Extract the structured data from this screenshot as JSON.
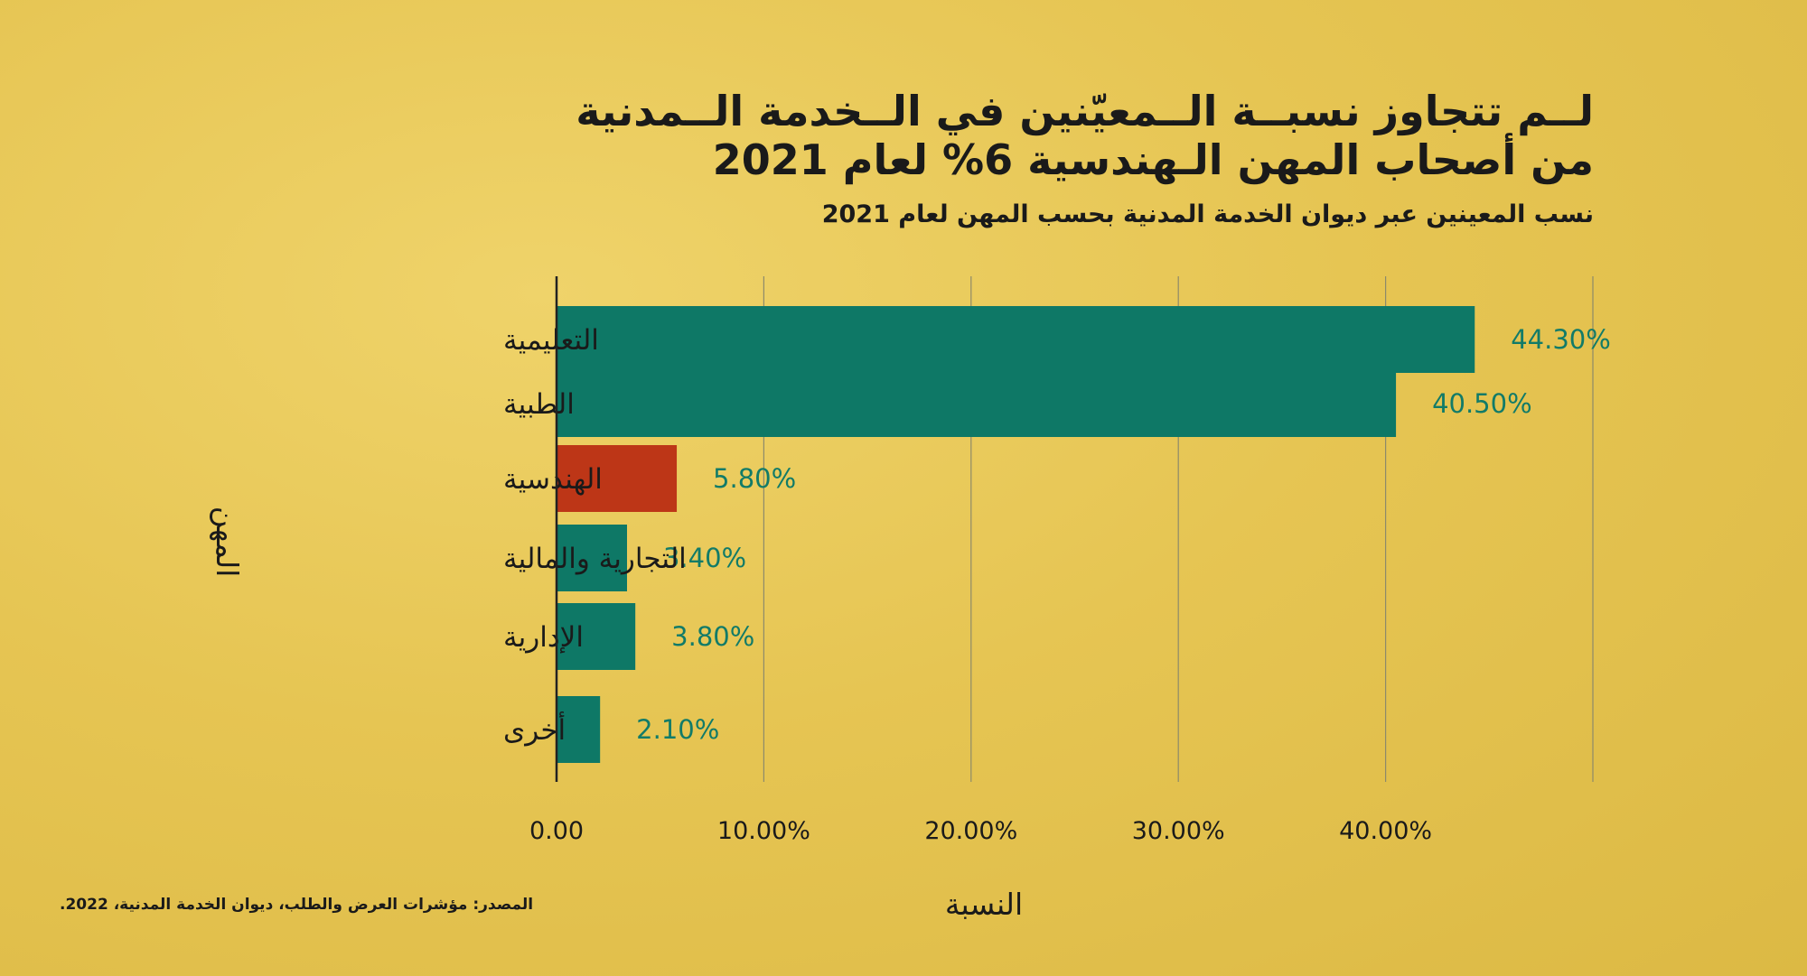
{
  "title_lines": [
    "لــم تتجاوز نسبــة الــمعيّنين في الــخدمة الــمدنية",
    "من أصحاب المهن الـهندسية 6% لعام 2021"
  ],
  "subtitle": "نسب المعينين عبر ديوان الخدمة المدنية بحسب المهن لعام 2021",
  "source": "المصدر: مؤشرات العرض والطلب، ديوان الخدمة المدنية، 2022.",
  "colors": {
    "bar": "#0e7866",
    "highlight": "#bd3617",
    "value_label": "#127b68"
  },
  "chart_data": {
    "type": "bar",
    "orientation": "horizontal",
    "categories": [
      "التعليمية",
      "الطبية",
      "الهندسية",
      "التجارية والمالية",
      "الإدارية",
      "أخرى"
    ],
    "values": [
      44.3,
      40.5,
      5.8,
      3.4,
      3.8,
      2.1
    ],
    "value_labels": [
      "44.30%",
      "40.50%",
      "5.80%",
      "3.40%",
      "3.80%",
      "2.10%"
    ],
    "highlight_category": "الهندسية",
    "xlabel": "النسبة",
    "ylabel": "المهن",
    "xlim": [
      0,
      50
    ],
    "xticks": [
      0,
      10,
      20,
      30,
      40
    ],
    "xtick_labels": [
      "0.00",
      "10.00%",
      "20.00%",
      "30.00%",
      "40.00%"
    ],
    "grid": true
  }
}
